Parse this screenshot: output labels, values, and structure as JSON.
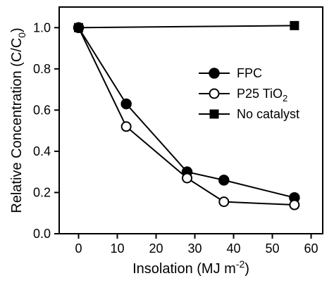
{
  "chart_data": {
    "type": "line",
    "title": "",
    "xlabel": {
      "main": "Insolation (MJ m",
      "sup": "-2",
      "tail": ")"
    },
    "ylabel": {
      "main": "Relative Concentration (C/C",
      "sub": "0",
      "tail": ")"
    },
    "xlim": [
      -5,
      63
    ],
    "ylim": [
      0.0,
      1.1
    ],
    "xticks": [
      0,
      10,
      20,
      30,
      40,
      50,
      60
    ],
    "xtick_labels": [
      "0",
      "10",
      "20",
      "30",
      "40",
      "50",
      "60"
    ],
    "yticks": [
      0.0,
      0.2,
      0.4,
      0.6,
      0.8,
      1.0
    ],
    "ytick_labels": [
      "0.0",
      "0.2",
      "0.4",
      "0.6",
      "0.8",
      "1.0"
    ],
    "grid": false,
    "legend_position": "center-right",
    "series": [
      {
        "name": "FPC",
        "marker": "filled-circle",
        "x": [
          0,
          12.3,
          28,
          37.5,
          55.7
        ],
        "y": [
          1.0,
          0.63,
          0.3,
          0.26,
          0.175
        ]
      },
      {
        "name_main": "P25 TiO",
        "name_sub": "2",
        "marker": "open-circle",
        "x": [
          0,
          12.3,
          28,
          37.5,
          55.7
        ],
        "y": [
          1.0,
          0.52,
          0.27,
          0.155,
          0.14
        ]
      },
      {
        "name": "No catalyst",
        "marker": "filled-square",
        "x": [
          0,
          55.7
        ],
        "y": [
          1.0,
          1.01
        ]
      }
    ],
    "colors": {
      "line": "#000000",
      "open_marker_fill": "#ffffff"
    }
  }
}
